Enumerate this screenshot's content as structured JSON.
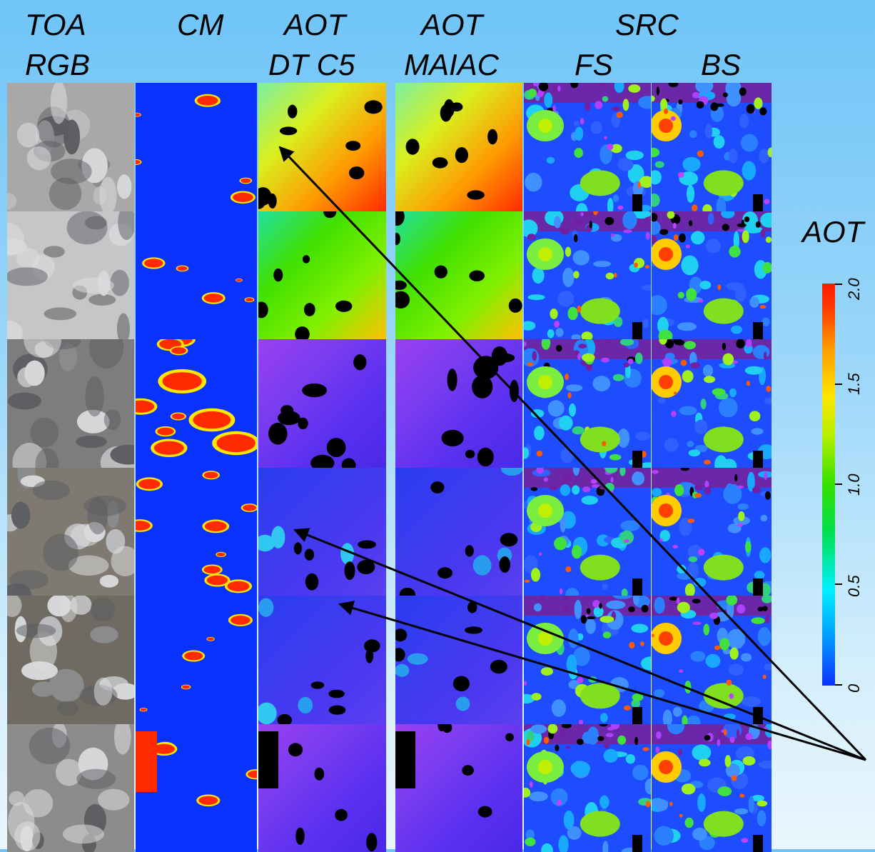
{
  "headers": {
    "toa": "TOA",
    "rgb": "RGB",
    "cm": "CM",
    "aot1": "AOT",
    "dtc5": "DT C5",
    "aot2": "AOT",
    "maiac": "MAIAC",
    "src": "SRC",
    "fs": "FS",
    "bs": "BS"
  },
  "colorbar": {
    "title": "AOT",
    "ticks": [
      "2.0",
      "1.5",
      "1.0",
      "0.5",
      "0"
    ]
  },
  "colors": {
    "background_top": "#6fc4f7",
    "background_bottom": "#e9f6fd",
    "cm_blue": "#0a32ff",
    "cloud_red": "#ff2a00",
    "arrow": "#000000"
  },
  "grid": {
    "columns": [
      "toa-rgb",
      "cm",
      "aot-dt-c5",
      "aot-maiac",
      "src-fs",
      "src-bs"
    ],
    "rows": 6,
    "aot_row_levels": [
      "high",
      "medium",
      "low",
      "low",
      "low",
      "low"
    ]
  }
}
